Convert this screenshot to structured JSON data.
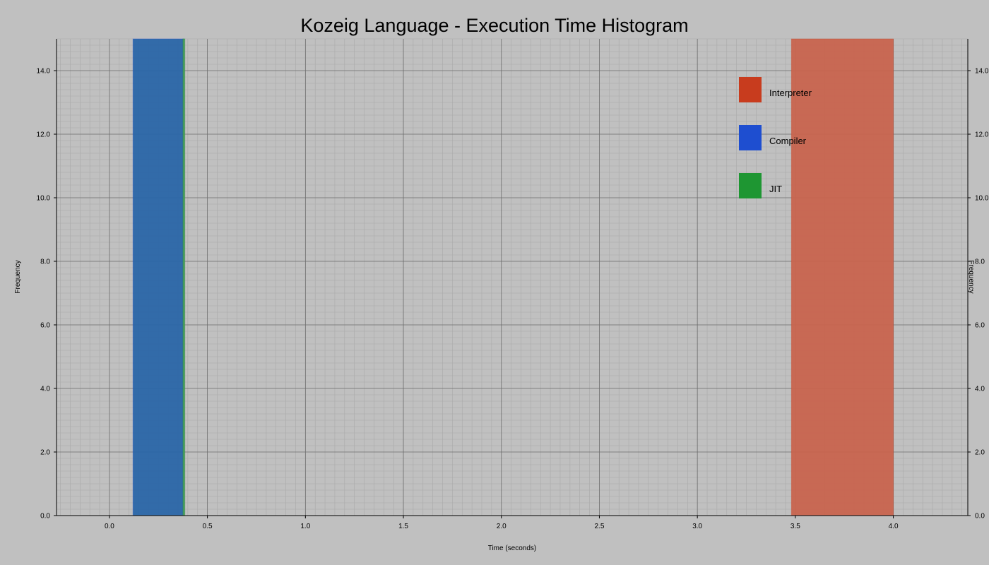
{
  "chart_data": {
    "type": "bar",
    "subtype": "histogram",
    "title": "Kozeig Language - Execution Time Histogram",
    "xlabel": "Time (seconds)",
    "ylabel": "Frequency",
    "xlim": [
      -0.27,
      4.38
    ],
    "ylim": [
      0,
      15
    ],
    "x_ticks": [
      0.0,
      0.5,
      1.0,
      1.5,
      2.0,
      2.5,
      3.0,
      3.5,
      4.0
    ],
    "x_tick_labels": [
      "0.0",
      "0.5",
      "1.0",
      "1.5",
      "2.0",
      "2.5",
      "3.0",
      "3.5",
      "4.0"
    ],
    "y_ticks": [
      0,
      2,
      4,
      6,
      8,
      10,
      12,
      14
    ],
    "y_tick_labels": [
      "0.0",
      "2.0",
      "4.0",
      "6.0",
      "8.0",
      "10.0",
      "12.0",
      "14.0"
    ],
    "grid": true,
    "minor_grid": true,
    "legend_position": "top-right",
    "background_color": "#c0c0c0",
    "series": [
      {
        "name": "Interpreter",
        "color": "#c83c1e",
        "bar_color": "#c8644e",
        "bins": [
          {
            "x0": 3.48,
            "x1": 4.0,
            "value": 15
          }
        ]
      },
      {
        "name": "Compiler",
        "color": "#1e4ed0",
        "bar_color": "#2a66a8",
        "bins": [
          {
            "x0": 0.12,
            "x1": 0.38,
            "value": 15
          }
        ]
      },
      {
        "name": "JIT",
        "color": "#1e9632",
        "bar_color": "#4a9a5e",
        "bins": [
          {
            "x0": 0.375,
            "x1": 0.385,
            "value": 15
          }
        ]
      }
    ]
  }
}
